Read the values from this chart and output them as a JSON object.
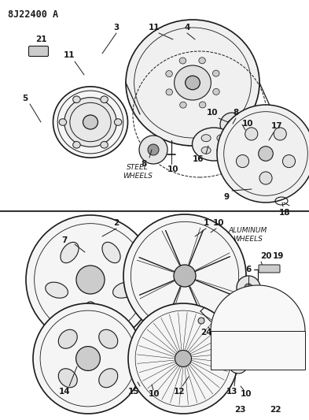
{
  "bg_color": "#ffffff",
  "lc": "#1a1a1a",
  "title": "8J22400 A",
  "fig_w": 3.93,
  "fig_h": 5.33,
  "dpi": 100,
  "divider_y": 268,
  "xlim": [
    0,
    393
  ],
  "ylim": [
    0,
    533
  ]
}
